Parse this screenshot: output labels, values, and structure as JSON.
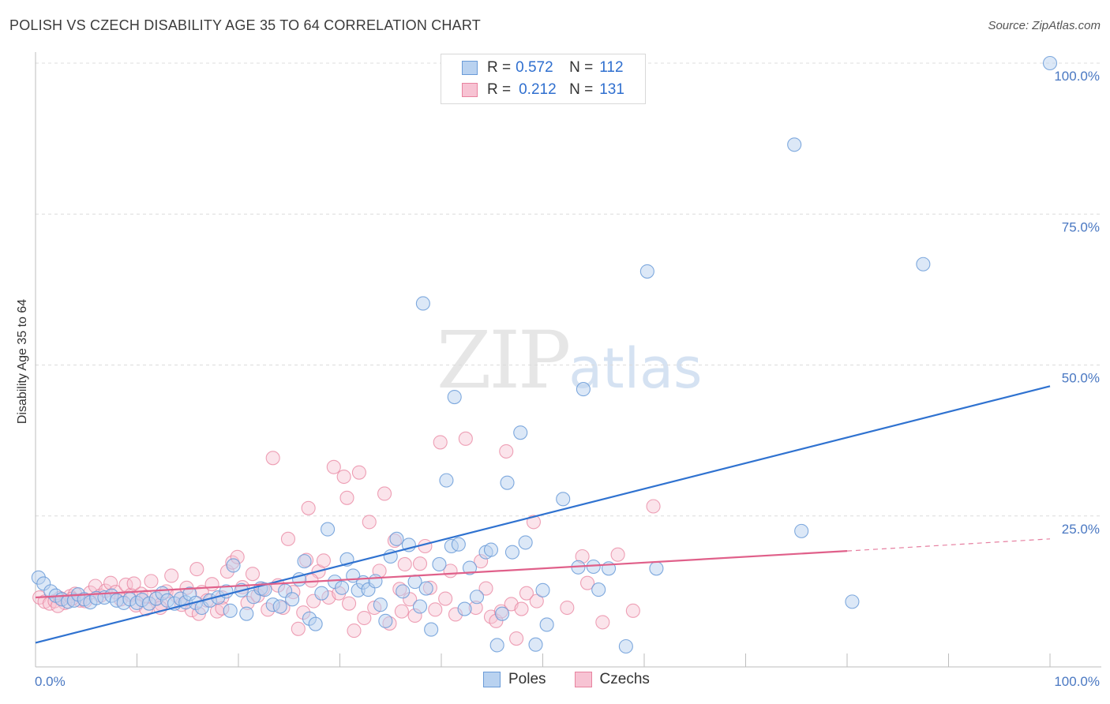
{
  "header": {
    "title": "POLISH VS CZECH DISABILITY AGE 35 TO 64 CORRELATION CHART",
    "source": "Source: ZipAtlas.com"
  },
  "watermark": {
    "zip": "ZIP",
    "atlas": "atlas"
  },
  "legend": {
    "rows": [
      {
        "r_label": "R =",
        "r_value": "0.572",
        "n_label": "N =",
        "n_value": "112"
      },
      {
        "r_label": "R =",
        "r_value": "0.212",
        "n_label": "N =",
        "n_value": "131"
      }
    ],
    "bottom": [
      "Poles",
      "Czechs"
    ]
  },
  "colors": {
    "poles_fill": "#b9d2f0",
    "poles_stroke": "#6a9bd8",
    "poles_line": "#2f72d0",
    "czechs_fill": "#f7c3d3",
    "czechs_stroke": "#e8839f",
    "czechs_line": "#e0608a"
  },
  "chart_data": {
    "type": "scatter",
    "title": "POLISH VS CZECH DISABILITY AGE 35 TO 64 CORRELATION CHART",
    "xlabel": "",
    "ylabel": "Disability Age 35 to 64",
    "xlim": [
      0,
      100
    ],
    "ylim": [
      0,
      100
    ],
    "x_tick_labels": [
      "0.0%",
      "100.0%"
    ],
    "y_ticks": [
      25,
      50,
      75,
      100
    ],
    "y_tick_labels": [
      "25.0%",
      "50.0%",
      "75.0%",
      "100.0%"
    ],
    "grid": true,
    "legend_position": "top-center",
    "series": [
      {
        "name": "Poles",
        "r": 0.572,
        "n": 112,
        "trend": {
          "x": [
            0,
            100
          ],
          "y": [
            4.0,
            46.5
          ]
        },
        "points": [
          [
            0.3,
            14.8
          ],
          [
            0.8,
            13.8
          ],
          [
            1.5,
            12.5
          ],
          [
            2,
            11.8
          ],
          [
            2.6,
            11.2
          ],
          [
            3.2,
            10.8
          ],
          [
            3.8,
            11.0
          ],
          [
            4.2,
            12.0
          ],
          [
            4.8,
            11.2
          ],
          [
            5.4,
            10.7
          ],
          [
            6,
            11.4
          ],
          [
            6.8,
            11.5
          ],
          [
            7.5,
            11.8
          ],
          [
            8,
            11.0
          ],
          [
            8.7,
            10.6
          ],
          [
            9.3,
            11.2
          ],
          [
            10,
            10.6
          ],
          [
            10.5,
            11.1
          ],
          [
            11.2,
            10.5
          ],
          [
            11.9,
            11.3
          ],
          [
            12.5,
            12.2
          ],
          [
            13,
            11.0
          ],
          [
            13.7,
            10.5
          ],
          [
            14.3,
            11.3
          ],
          [
            14.8,
            10.7
          ],
          [
            15.2,
            12.1
          ],
          [
            15.8,
            10.6
          ],
          [
            16.4,
            9.8
          ],
          [
            17.2,
            11.0
          ],
          [
            18,
            11.5
          ],
          [
            18.8,
            12.5
          ],
          [
            19.2,
            9.3
          ],
          [
            19.5,
            16.8
          ],
          [
            20.3,
            12.7
          ],
          [
            20.8,
            8.8
          ],
          [
            21.5,
            11.6
          ],
          [
            22.2,
            13.0
          ],
          [
            22.6,
            12.8
          ],
          [
            23.4,
            10.3
          ],
          [
            24.1,
            10.0
          ],
          [
            24.6,
            12.6
          ],
          [
            25.3,
            11.2
          ],
          [
            26,
            14.5
          ],
          [
            26.5,
            17.5
          ],
          [
            27.0,
            8.0
          ],
          [
            27.6,
            7.1
          ],
          [
            28.2,
            12.2
          ],
          [
            28.8,
            22.8
          ],
          [
            29.5,
            14.1
          ],
          [
            30.2,
            13.1
          ],
          [
            30.7,
            17.8
          ],
          [
            31.3,
            15.1
          ],
          [
            31.8,
            12.7
          ],
          [
            32.3,
            14.0
          ],
          [
            32.8,
            12.8
          ],
          [
            33.5,
            14.2
          ],
          [
            34.0,
            10.3
          ],
          [
            34.5,
            7.6
          ],
          [
            35,
            18.3
          ],
          [
            35.6,
            21.2
          ],
          [
            36.2,
            12.5
          ],
          [
            36.8,
            20.2
          ],
          [
            37.4,
            14.1
          ],
          [
            37.9,
            10.0
          ],
          [
            38.5,
            13.0
          ],
          [
            38.2,
            60.2
          ],
          [
            39,
            6.2
          ],
          [
            39.8,
            17.0
          ],
          [
            40.5,
            30.9
          ],
          [
            41,
            20.0
          ],
          [
            41.3,
            44.7
          ],
          [
            41.7,
            20.3
          ],
          [
            42.3,
            9.6
          ],
          [
            42.8,
            16.4
          ],
          [
            43.5,
            11.6
          ],
          [
            44.4,
            19.0
          ],
          [
            44.9,
            19.4
          ],
          [
            45.5,
            3.6
          ],
          [
            46,
            8.8
          ],
          [
            46.5,
            30.5
          ],
          [
            47,
            19.0
          ],
          [
            47.8,
            38.8
          ],
          [
            48.3,
            20.6
          ],
          [
            49.3,
            3.7
          ],
          [
            50,
            12.7
          ],
          [
            50.4,
            7.0
          ],
          [
            52,
            27.8
          ],
          [
            53.5,
            16.5
          ],
          [
            54,
            46.0
          ],
          [
            55,
            16.6
          ],
          [
            55.5,
            12.8
          ],
          [
            56.5,
            16.3
          ],
          [
            58.2,
            3.4
          ],
          [
            60.3,
            65.5
          ],
          [
            61.2,
            16.3
          ],
          [
            74.8,
            86.5
          ],
          [
            75.5,
            22.5
          ],
          [
            80.5,
            10.8
          ],
          [
            87.5,
            66.7
          ],
          [
            100,
            100
          ]
        ]
      },
      {
        "name": "Czechs",
        "r": 0.212,
        "n": 131,
        "trend": {
          "x": [
            0,
            80
          ],
          "y": [
            11.5,
            19.2
          ]
        },
        "dashed_extension": {
          "x": [
            80,
            100
          ],
          "y": [
            19.2,
            21.2
          ]
        },
        "points": [
          [
            0.4,
            11.5
          ],
          [
            0.9,
            10.8
          ],
          [
            1.4,
            10.5
          ],
          [
            1.9,
            10.9
          ],
          [
            2.4,
            11.4
          ],
          [
            2.9,
            10.6
          ],
          [
            3.4,
            11.7
          ],
          [
            3.9,
            12.1
          ],
          [
            4.4,
            11.0
          ],
          [
            4.9,
            10.9
          ],
          [
            5.4,
            12.3
          ],
          [
            5.9,
            13.4
          ],
          [
            6.4,
            11.8
          ],
          [
            6.9,
            12.6
          ],
          [
            7.4,
            13.9
          ],
          [
            7.9,
            12.4
          ],
          [
            8.4,
            11.2
          ],
          [
            8.9,
            13.6
          ],
          [
            9.4,
            11.9
          ],
          [
            9.9,
            10.2
          ],
          [
            10.4,
            12.1
          ],
          [
            10.9,
            11.6
          ],
          [
            11.4,
            14.2
          ],
          [
            11.9,
            11.3
          ],
          [
            12.4,
            10.4
          ],
          [
            12.9,
            12.5
          ],
          [
            13.4,
            15.1
          ],
          [
            13.9,
            11.8
          ],
          [
            14.4,
            10.3
          ],
          [
            14.9,
            13.1
          ],
          [
            15.4,
            9.4
          ],
          [
            15.9,
            16.2
          ],
          [
            16.4,
            12.4
          ],
          [
            16.9,
            11.0
          ],
          [
            17.4,
            13.7
          ],
          [
            17.9,
            9.2
          ],
          [
            18.4,
            11.5
          ],
          [
            18.9,
            15.8
          ],
          [
            19.4,
            17.3
          ],
          [
            19.9,
            18.2
          ],
          [
            20.4,
            13.2
          ],
          [
            20.9,
            10.6
          ],
          [
            21.4,
            15.4
          ],
          [
            21.9,
            11.8
          ],
          [
            22.4,
            12.9
          ],
          [
            22.9,
            9.5
          ],
          [
            23.4,
            34.6
          ],
          [
            23.9,
            13.5
          ],
          [
            24.4,
            9.8
          ],
          [
            24.9,
            21.2
          ],
          [
            25.4,
            12.4
          ],
          [
            25.9,
            6.3
          ],
          [
            26.4,
            9.0
          ],
          [
            26.9,
            26.3
          ],
          [
            27.4,
            10.9
          ],
          [
            27.9,
            15.8
          ],
          [
            28.4,
            17.6
          ],
          [
            28.9,
            11.5
          ],
          [
            29.4,
            33.1
          ],
          [
            29.9,
            12.2
          ],
          [
            30.4,
            31.5
          ],
          [
            30.9,
            10.5
          ],
          [
            31.4,
            6.0
          ],
          [
            31.9,
            32.2
          ],
          [
            32.4,
            8.1
          ],
          [
            32.9,
            24.0
          ],
          [
            33.4,
            9.8
          ],
          [
            33.9,
            15.9
          ],
          [
            34.4,
            28.7
          ],
          [
            34.9,
            7.2
          ],
          [
            35.4,
            20.9
          ],
          [
            35.9,
            12.9
          ],
          [
            36.4,
            17.0
          ],
          [
            36.9,
            11.2
          ],
          [
            37.4,
            8.5
          ],
          [
            37.9,
            17.1
          ],
          [
            38.4,
            20.0
          ],
          [
            38.9,
            13.1
          ],
          [
            39.4,
            9.5
          ],
          [
            39.9,
            37.2
          ],
          [
            40.4,
            11.3
          ],
          [
            40.9,
            15.9
          ],
          [
            41.4,
            8.7
          ],
          [
            42.4,
            37.8
          ],
          [
            43.4,
            9.8
          ],
          [
            43.9,
            17.5
          ],
          [
            44.4,
            13.0
          ],
          [
            44.9,
            8.3
          ],
          [
            45.4,
            7.6
          ],
          [
            45.9,
            9.2
          ],
          [
            46.4,
            35.7
          ],
          [
            46.9,
            10.4
          ],
          [
            47.4,
            4.7
          ],
          [
            47.9,
            9.6
          ],
          [
            48.4,
            12.2
          ],
          [
            49.4,
            10.9
          ],
          [
            54.4,
            13.9
          ],
          [
            55.9,
            7.4
          ],
          [
            57.4,
            18.6
          ],
          [
            58.9,
            9.3
          ],
          [
            60.9,
            26.6
          ],
          [
            18.4,
            9.7
          ],
          [
            12.3,
            9.8
          ],
          [
            2.2,
            10.1
          ],
          [
            30.7,
            28.0
          ],
          [
            27.2,
            14.3
          ],
          [
            49.1,
            24.0
          ],
          [
            3.6,
            11.3
          ],
          [
            26.7,
            17.7
          ],
          [
            16.1,
            8.8
          ],
          [
            52.4,
            9.8
          ],
          [
            53.9,
            18.3
          ],
          [
            9.7,
            13.8
          ],
          [
            36.1,
            9.2
          ],
          [
            10.9,
            9.6
          ]
        ]
      }
    ]
  }
}
